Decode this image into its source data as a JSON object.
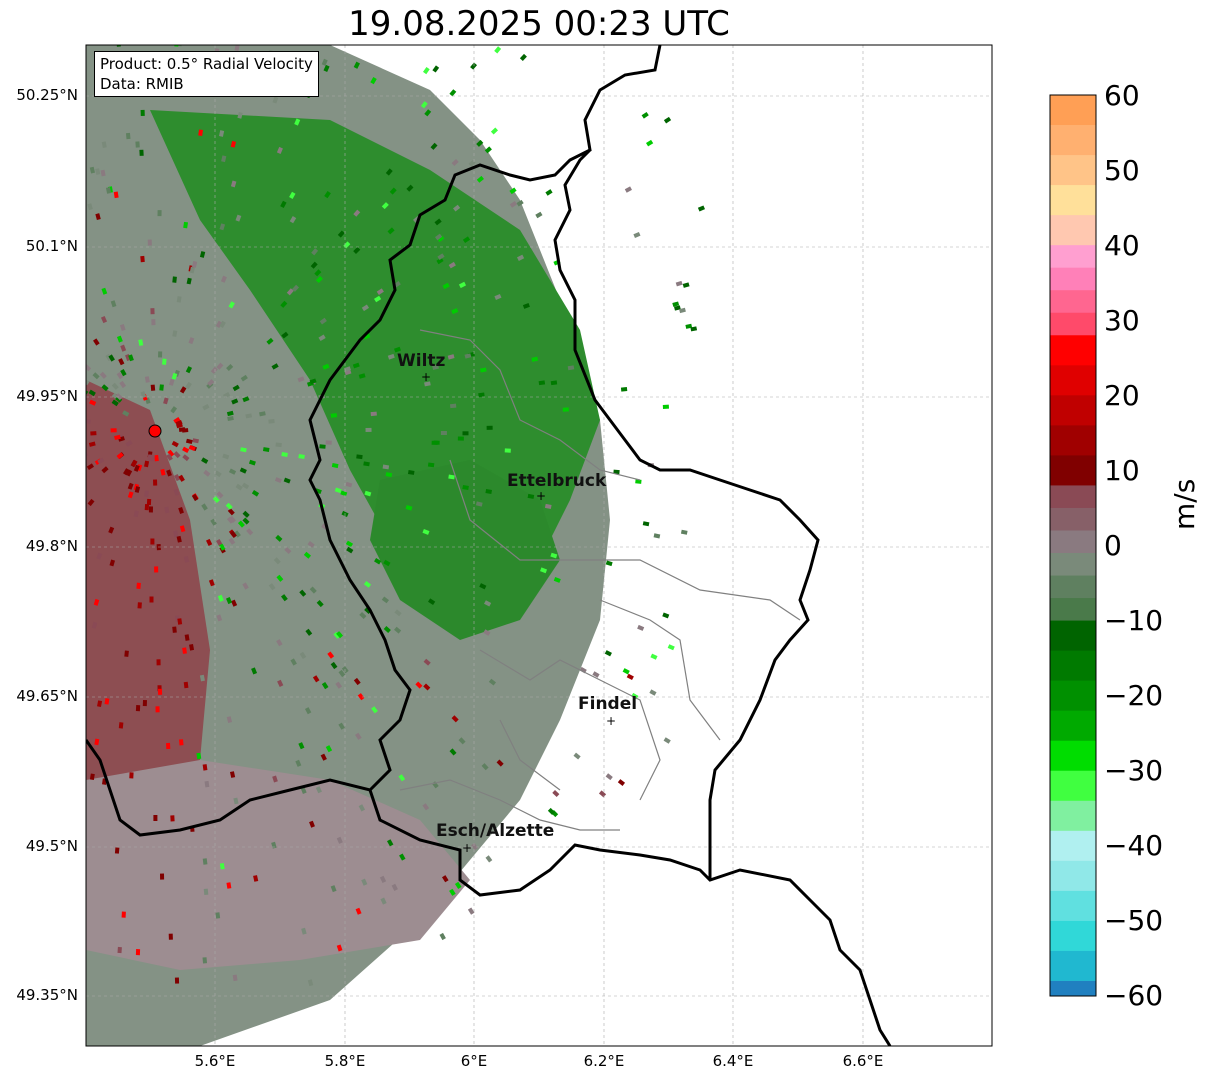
{
  "title": "19.08.2025 00:23 UTC",
  "info_box": {
    "product_line": "Product: 0.5° Radial Velocity",
    "data_line": "Data: RMIB"
  },
  "axes": {
    "lat_ticks": [
      "50.25°N",
      "50.1°N",
      "49.95°N",
      "49.8°N",
      "49.65°N",
      "49.5°N",
      "49.35°N"
    ],
    "lon_ticks": [
      "5.6°E",
      "5.8°E",
      "6°E",
      "6.2°E",
      "6.4°E",
      "6.6°E"
    ],
    "extent": {
      "lon_min": 5.4,
      "lon_max": 6.8,
      "lat_min": 49.3,
      "lat_max": 50.3
    },
    "gridlines": true
  },
  "colorbar": {
    "label": "m/s",
    "ticks": [
      "60",
      "50",
      "40",
      "30",
      "20",
      "10",
      "0",
      "−10",
      "−20",
      "−30",
      "−40",
      "−50",
      "−60"
    ],
    "range": [
      -60,
      60
    ]
  },
  "cities": [
    {
      "name": "Wiltz",
      "lon": 5.93,
      "lat": 49.96
    },
    {
      "name": "Ettelbruck",
      "lon": 6.1,
      "lat": 49.84
    },
    {
      "name": "Findel",
      "lon": 6.21,
      "lat": 49.63
    },
    {
      "name": "Esch/Alzette",
      "lon": 5.98,
      "lat": 49.5
    }
  ],
  "radar_site": {
    "lon": 5.505,
    "lat": 49.915
  },
  "colors": {
    "strong_inbound": "#006400",
    "inbound": "#00cc00",
    "near_zero_neg": "#5f7f5f",
    "near_zero_pos": "#8a6f75",
    "outbound": "#8b0000",
    "strong_outbound": "#ff0000",
    "radar_marker": "#ff0000"
  }
}
